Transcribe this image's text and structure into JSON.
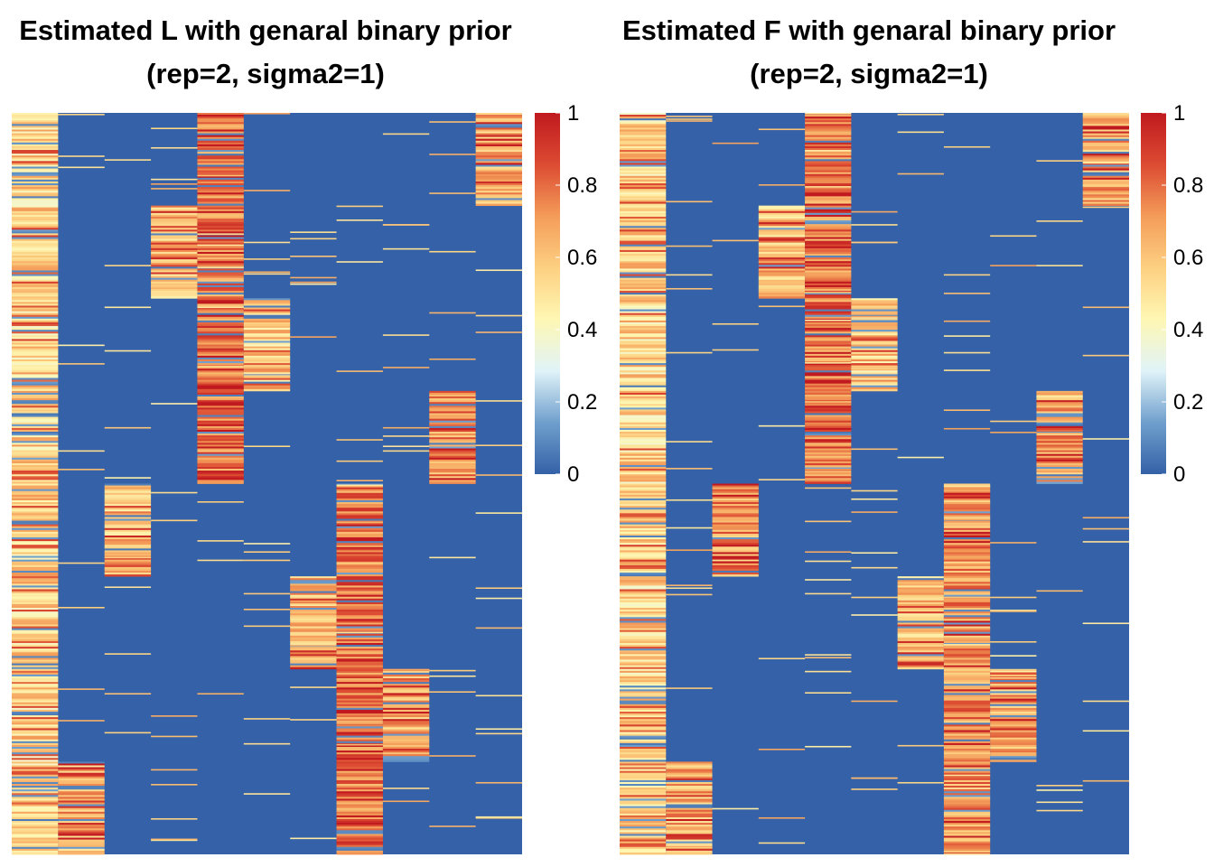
{
  "colors": {
    "background": "#3461a7",
    "scale": [
      "#3461a7",
      "#6f9fcd",
      "#e0f3f8",
      "#fef7b3",
      "#fdd081",
      "#f49c59",
      "#dc4b32",
      "#c0191f"
    ]
  },
  "chart_data": [
    {
      "type": "heatmap",
      "title": "Estimated L with genaral binary prior",
      "subtitle": "(rep=2, sigma2=1)",
      "xlabel": "",
      "ylabel": "",
      "n_columns": 11,
      "n_rows": 800,
      "value_range": [
        0,
        1
      ],
      "legend": {
        "position": "right",
        "ticks": [
          0,
          0.2,
          0.4,
          0.6,
          0.8,
          1
        ],
        "labels": [
          "0",
          "0.2",
          "0.4",
          "0.6",
          "0.8",
          "1"
        ]
      },
      "dense_blocks": [
        {
          "column": 1,
          "row_start": 0,
          "row_end": 800,
          "level": 0.55
        },
        {
          "column": 2,
          "row_start": 700,
          "row_end": 800,
          "level": 0.65
        },
        {
          "column": 3,
          "row_start": 400,
          "row_end": 500,
          "level": 0.62
        },
        {
          "column": 4,
          "row_start": 100,
          "row_end": 200,
          "level": 0.62
        },
        {
          "column": 5,
          "row_start": 0,
          "row_end": 400,
          "level": 0.78
        },
        {
          "column": 6,
          "row_start": 200,
          "row_end": 300,
          "level": 0.58
        },
        {
          "column": 7,
          "row_start": 500,
          "row_end": 600,
          "level": 0.65
        },
        {
          "column": 8,
          "row_start": 400,
          "row_end": 800,
          "level": 0.78
        },
        {
          "column": 9,
          "row_start": 600,
          "row_end": 700,
          "level": 0.68
        },
        {
          "column": 10,
          "row_start": 300,
          "row_end": 400,
          "level": 0.72
        },
        {
          "column": 11,
          "row_start": 0,
          "row_end": 100,
          "level": 0.68
        }
      ]
    },
    {
      "type": "heatmap",
      "title": "Estimated F with genaral binary prior",
      "subtitle": "(rep=2, sigma2=1)",
      "xlabel": "",
      "ylabel": "",
      "n_columns": 11,
      "n_rows": 800,
      "value_range": [
        0,
        1
      ],
      "legend": {
        "position": "right",
        "ticks": [
          0,
          0.2,
          0.4,
          0.6,
          0.8,
          1
        ],
        "labels": [
          "0",
          "0.2",
          "0.4",
          "0.6",
          "0.8",
          "1"
        ]
      },
      "dense_blocks": [
        {
          "column": 1,
          "row_start": 0,
          "row_end": 800,
          "level": 0.55
        },
        {
          "column": 2,
          "row_start": 700,
          "row_end": 800,
          "level": 0.65
        },
        {
          "column": 3,
          "row_start": 400,
          "row_end": 500,
          "level": 0.72
        },
        {
          "column": 4,
          "row_start": 100,
          "row_end": 200,
          "level": 0.62
        },
        {
          "column": 5,
          "row_start": 0,
          "row_end": 400,
          "level": 0.78
        },
        {
          "column": 6,
          "row_start": 200,
          "row_end": 300,
          "level": 0.58
        },
        {
          "column": 7,
          "row_start": 500,
          "row_end": 600,
          "level": 0.62
        },
        {
          "column": 8,
          "row_start": 400,
          "row_end": 800,
          "level": 0.72
        },
        {
          "column": 9,
          "row_start": 600,
          "row_end": 700,
          "level": 0.68
        },
        {
          "column": 10,
          "row_start": 300,
          "row_end": 400,
          "level": 0.72
        },
        {
          "column": 11,
          "row_start": 0,
          "row_end": 100,
          "level": 0.68
        }
      ]
    }
  ]
}
